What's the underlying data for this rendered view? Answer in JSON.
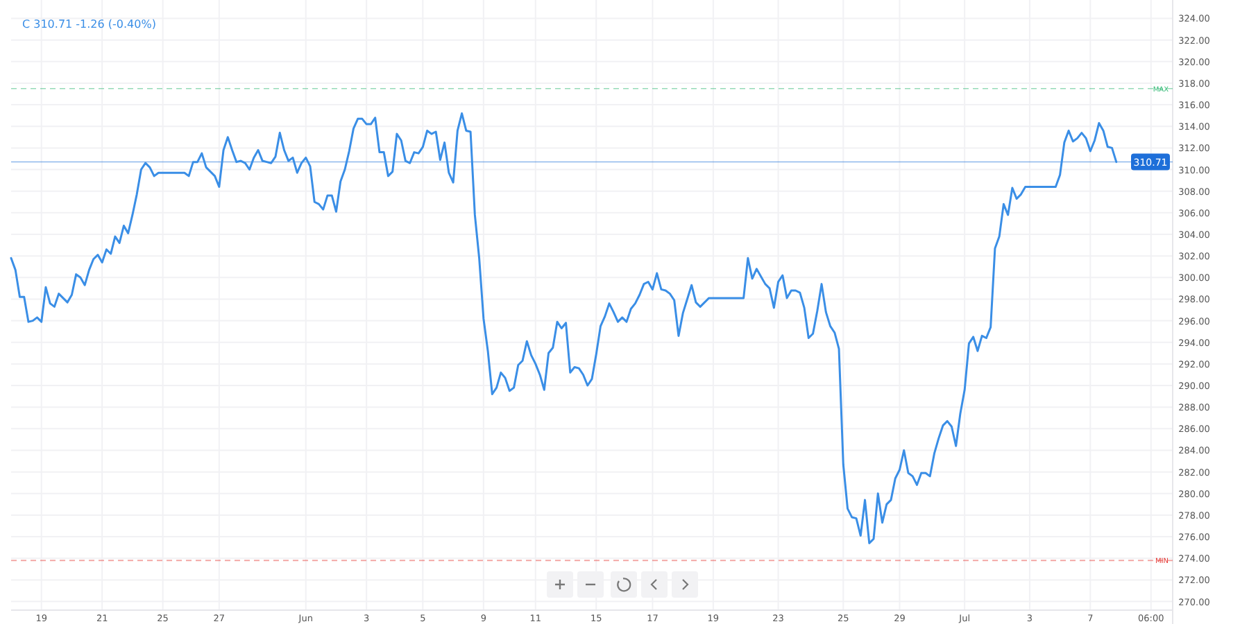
{
  "chart_data": {
    "type": "line",
    "annotations": [
      "C 310.71 -1.26 (-0.40%)"
    ],
    "categories": [
      null,
      null,
      null,
      null,
      null,
      null,
      null,
      "19",
      null,
      null,
      null,
      null,
      null,
      null,
      null,
      null,
      null,
      null,
      null,
      null,
      null,
      "21",
      null,
      null,
      null,
      null,
      null,
      null,
      null,
      null,
      null,
      null,
      null,
      null,
      null,
      "25",
      null,
      null,
      null,
      null,
      null,
      null,
      null,
      null,
      null,
      null,
      null,
      null,
      "27",
      null,
      null,
      null,
      null,
      null,
      null,
      null,
      null,
      null,
      null,
      null,
      null,
      null,
      null,
      null,
      null,
      null,
      null,
      null,
      "Jun",
      null,
      null,
      null,
      null,
      null,
      null,
      null,
      null,
      null,
      null,
      null,
      null,
      null,
      "3",
      null,
      null,
      null,
      null,
      null,
      null,
      null,
      null,
      null,
      null,
      null,
      null,
      "5",
      null,
      null,
      null,
      null,
      null,
      null,
      null,
      null,
      null,
      null,
      null,
      null,
      null,
      "9",
      null,
      null,
      null,
      null,
      null,
      null,
      null,
      null,
      null,
      null,
      null,
      "11",
      null,
      null,
      null,
      null,
      null,
      null,
      null,
      null,
      null,
      null,
      null,
      null,
      null,
      "15",
      null,
      null,
      null,
      null,
      null,
      null,
      null,
      null,
      null,
      null,
      null,
      null,
      "17",
      null,
      null,
      null,
      null,
      null,
      null,
      null,
      null,
      null,
      null,
      null,
      null,
      null,
      "19",
      null,
      null,
      null,
      null,
      null,
      null,
      null,
      null,
      null,
      null,
      null,
      null,
      null,
      null,
      "23",
      null,
      null,
      null,
      null,
      null,
      null,
      null,
      null,
      null,
      null,
      null,
      null,
      null,
      null,
      "25",
      null,
      null,
      null,
      null,
      null,
      null,
      null,
      null,
      null,
      null,
      null,
      null,
      "29",
      null,
      null,
      null,
      null,
      null,
      null,
      null,
      null,
      null,
      null,
      null,
      null,
      null,
      null,
      "Jul",
      null,
      null,
      null,
      null,
      null,
      null,
      null,
      null,
      null,
      null,
      null,
      null,
      null,
      null,
      "3",
      null,
      null,
      null,
      null,
      null,
      null,
      null,
      null,
      null,
      null,
      null,
      null,
      null,
      "7",
      null,
      null,
      null,
      null,
      null,
      null,
      null,
      null,
      null,
      null,
      null,
      null,
      null,
      "06:00",
      null,
      null,
      null,
      null,
      null
    ],
    "series": [
      {
        "color": "#3a8ee6",
        "values": [
          301.8,
          300.7,
          298.2,
          298.2,
          295.9,
          296.0,
          296.3,
          295.9,
          299.1,
          297.6,
          297.3,
          298.5,
          298.1,
          297.7,
          298.4,
          300.3,
          300.0,
          299.3,
          300.7,
          301.7,
          302.1,
          301.4,
          302.6,
          302.2,
          303.8,
          303.2,
          304.8,
          304.1,
          305.8,
          307.7,
          310.0,
          310.6,
          310.2,
          309.4,
          309.7,
          309.7,
          309.7,
          309.7,
          309.7,
          309.7,
          309.7,
          309.4,
          310.7,
          310.7,
          311.5,
          310.2,
          309.8,
          309.4,
          308.4,
          311.8,
          313.0,
          311.8,
          310.7,
          310.8,
          310.6,
          310.0,
          311.1,
          311.8,
          310.8,
          310.7,
          310.6,
          311.2,
          313.4,
          311.8,
          310.8,
          311.1,
          309.7,
          310.6,
          311.1,
          310.3,
          307.0,
          306.8,
          306.3,
          307.6,
          307.6,
          306.1,
          308.9,
          310.0,
          311.7,
          313.8,
          314.7,
          314.7,
          314.2,
          314.2,
          314.8,
          311.6,
          311.6,
          309.4,
          309.8,
          313.3,
          312.7,
          310.8,
          310.6,
          311.6,
          311.5,
          312.1,
          313.6,
          313.3,
          313.5,
          310.9,
          312.5,
          309.7,
          308.8,
          313.6,
          315.2,
          313.6,
          313.5,
          305.8,
          301.8,
          296.2,
          293.2,
          289.2,
          289.8,
          291.2,
          290.7,
          289.5,
          289.8,
          291.9,
          292.3,
          294.1,
          292.8,
          292.0,
          291.0,
          289.6,
          293.0,
          293.5,
          295.9,
          295.3,
          295.8,
          291.2,
          291.7,
          291.6,
          291.0,
          290.0,
          290.6,
          292.9,
          295.5,
          296.4,
          297.6,
          296.8,
          295.9,
          296.3,
          295.9,
          297.1,
          297.6,
          298.4,
          299.4,
          299.6,
          298.9,
          300.4,
          298.9,
          298.8,
          298.5,
          297.9,
          294.6,
          296.7,
          298.0,
          299.3,
          297.7,
          297.3,
          297.7,
          298.1,
          298.1,
          298.1,
          298.1,
          298.1,
          298.1,
          298.1,
          298.1,
          298.1,
          301.8,
          299.9,
          300.8,
          300.1,
          299.4,
          299.0,
          297.2,
          299.6,
          300.2,
          298.1,
          298.8,
          298.8,
          298.6,
          297.2,
          294.4,
          294.8,
          296.9,
          299.4,
          296.8,
          295.5,
          294.9,
          293.4,
          282.7,
          278.6,
          277.8,
          277.7,
          276.1,
          279.4,
          275.4,
          275.8,
          280.0,
          277.3,
          279.0,
          279.4,
          281.4,
          282.2,
          284.0,
          281.9,
          281.6,
          280.8,
          281.9,
          281.9,
          281.6,
          283.7,
          285.1,
          286.3,
          286.7,
          286.2,
          284.4,
          287.4,
          289.6,
          293.9,
          294.5,
          293.2,
          294.6,
          294.4,
          295.4,
          302.7,
          303.8,
          306.8,
          305.8,
          308.3,
          307.3,
          307.7,
          308.4,
          308.4,
          308.4,
          308.4,
          308.4,
          308.4,
          308.4,
          308.4,
          309.5,
          312.5,
          313.6,
          312.6,
          312.9,
          313.4,
          312.9,
          311.7,
          312.7,
          314.3,
          313.6,
          312.1,
          312.0,
          310.7,
          null,
          null,
          null,
          null,
          null,
          null,
          null,
          null,
          null,
          null,
          null,
          null,
          null
        ]
      }
    ],
    "ylim": [
      269.2,
      325.7
    ],
    "yticks": [
      {
        "value": 270,
        "label": "270.00"
      },
      {
        "value": 272,
        "label": "272.00"
      },
      {
        "value": 274,
        "label": "274.00"
      },
      {
        "value": 276,
        "label": "276.00"
      },
      {
        "value": 278,
        "label": "278.00"
      },
      {
        "value": 280,
        "label": "280.00"
      },
      {
        "value": 282,
        "label": "282.00"
      },
      {
        "value": 284,
        "label": "284.00"
      },
      {
        "value": 286,
        "label": "286.00"
      },
      {
        "value": 288,
        "label": "288.00"
      },
      {
        "value": 290,
        "label": "290.00"
      },
      {
        "value": 292,
        "label": "292.00"
      },
      {
        "value": 294,
        "label": "294.00"
      },
      {
        "value": 296,
        "label": "296.00"
      },
      {
        "value": 298,
        "label": "298.00"
      },
      {
        "value": 300,
        "label": "300.00"
      },
      {
        "value": 302,
        "label": "302.00"
      },
      {
        "value": 304,
        "label": "304.00"
      },
      {
        "value": 306,
        "label": "306.00"
      },
      {
        "value": 308,
        "label": "308.00"
      },
      {
        "value": 310,
        "label": "310.00"
      },
      {
        "value": 312,
        "label": "312.00"
      },
      {
        "value": 314,
        "label": "314.00"
      },
      {
        "value": 316,
        "label": "316.00"
      },
      {
        "value": 318,
        "label": "318.00"
      },
      {
        "value": 320,
        "label": "320.00"
      },
      {
        "value": 322,
        "label": "322.00"
      },
      {
        "value": 324,
        "label": "324.00"
      }
    ],
    "ref_lines": [
      {
        "axis": "y",
        "value": 317.5,
        "label": "MAX",
        "color": "#2eb872",
        "line_style": "dashed"
      },
      {
        "axis": "y",
        "value": 273.8,
        "label": "MIN",
        "color": "#e53935",
        "line_style": "dashed"
      },
      {
        "axis": "y",
        "value": 310.71,
        "label": "310.71",
        "color": "#1e6fd9",
        "line_style": "solid"
      }
    ],
    "grid": true,
    "marker": "none",
    "line_style": "solid"
  }
}
